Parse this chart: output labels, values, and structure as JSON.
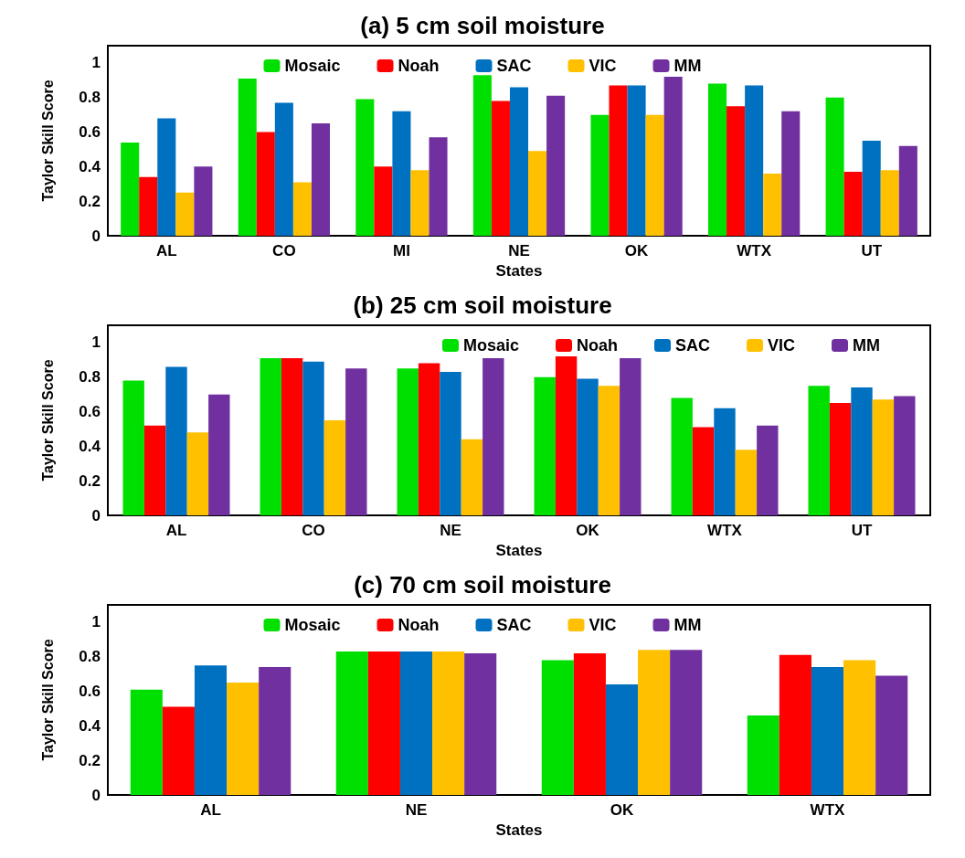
{
  "chart_data": [
    {
      "type": "bar",
      "title": "(a) 5 cm soil moisture",
      "xlabel": "States",
      "ylabel": "Taylor Skill Score",
      "categories": [
        "AL",
        "CO",
        "MI",
        "NE",
        "OK",
        "WTX",
        "UT"
      ],
      "ylim": [
        0,
        1.1
      ],
      "yticks": [
        0,
        0.2,
        0.4,
        0.6,
        0.8,
        1
      ],
      "grid": false,
      "legend": "top",
      "series": [
        {
          "name": "Mosaic",
          "color": "#00e000",
          "values": [
            0.54,
            0.91,
            0.79,
            0.93,
            0.7,
            0.88,
            0.8
          ]
        },
        {
          "name": "Noah",
          "color": "#ff0000",
          "values": [
            0.34,
            0.6,
            0.4,
            0.78,
            0.87,
            0.75,
            0.37
          ]
        },
        {
          "name": "SAC",
          "color": "#0070c0",
          "values": [
            0.68,
            0.77,
            0.72,
            0.86,
            0.87,
            0.87,
            0.55
          ]
        },
        {
          "name": "VIC",
          "color": "#ffc000",
          "values": [
            0.25,
            0.31,
            0.38,
            0.49,
            0.7,
            0.36,
            0.38
          ]
        },
        {
          "name": "MM",
          "color": "#7030a0",
          "values": [
            0.4,
            0.65,
            0.57,
            0.81,
            0.92,
            0.72,
            0.52
          ]
        }
      ]
    },
    {
      "type": "bar",
      "title": "(b) 25 cm soil moisture",
      "xlabel": "States",
      "ylabel": "Taylor Skill Score",
      "categories": [
        "AL",
        "CO",
        "NE",
        "OK",
        "WTX",
        "UT"
      ],
      "ylim": [
        0,
        1.1
      ],
      "yticks": [
        0,
        0.2,
        0.4,
        0.6,
        0.8,
        1
      ],
      "grid": false,
      "legend": "top right",
      "series": [
        {
          "name": "Mosaic",
          "color": "#00e000",
          "values": [
            0.78,
            0.91,
            0.85,
            0.8,
            0.68,
            0.75
          ]
        },
        {
          "name": "Noah",
          "color": "#ff0000",
          "values": [
            0.52,
            0.91,
            0.88,
            0.92,
            0.51,
            0.65
          ]
        },
        {
          "name": "SAC",
          "color": "#0070c0",
          "values": [
            0.86,
            0.89,
            0.83,
            0.79,
            0.62,
            0.74
          ]
        },
        {
          "name": "VIC",
          "color": "#ffc000",
          "values": [
            0.48,
            0.55,
            0.44,
            0.75,
            0.38,
            0.67
          ]
        },
        {
          "name": "MM",
          "color": "#7030a0",
          "values": [
            0.7,
            0.85,
            0.91,
            0.91,
            0.52,
            0.69
          ]
        }
      ]
    },
    {
      "type": "bar",
      "title": "(c) 70 cm soil moisture",
      "xlabel": "States",
      "ylabel": "Taylor Skill Score",
      "categories": [
        "AL",
        "NE",
        "OK",
        "WTX"
      ],
      "ylim": [
        0,
        1.1
      ],
      "yticks": [
        0,
        0.2,
        0.4,
        0.6,
        0.8,
        1
      ],
      "grid": false,
      "legend": "top",
      "series": [
        {
          "name": "Mosaic",
          "color": "#00e000",
          "values": [
            0.61,
            0.83,
            0.78,
            0.46
          ]
        },
        {
          "name": "Noah",
          "color": "#ff0000",
          "values": [
            0.51,
            0.83,
            0.82,
            0.81
          ]
        },
        {
          "name": "SAC",
          "color": "#0070c0",
          "values": [
            0.75,
            0.83,
            0.64,
            0.74
          ]
        },
        {
          "name": "VIC",
          "color": "#ffc000",
          "values": [
            0.65,
            0.83,
            0.84,
            0.78
          ]
        },
        {
          "name": "MM",
          "color": "#7030a0",
          "values": [
            0.74,
            0.82,
            0.84,
            0.69
          ]
        }
      ]
    }
  ]
}
